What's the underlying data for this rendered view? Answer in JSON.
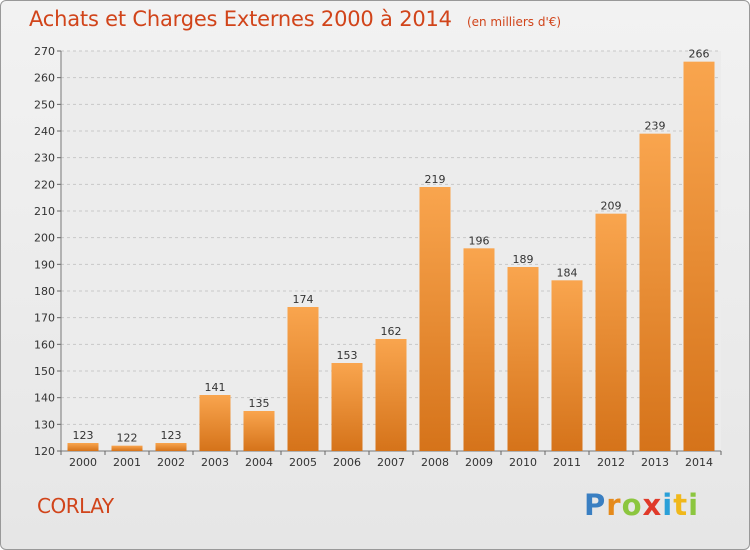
{
  "title": "Achats et Charges Externes 2000 à 2014",
  "unit": "(en milliers d'€)",
  "commune": "CORLAY",
  "logo": "Proxiti",
  "colors": {
    "title": "#d1441a",
    "bar_light": "#f9a54e",
    "bar_dark": "#d5731a"
  },
  "chart_data": {
    "type": "bar",
    "categories": [
      "2000",
      "2001",
      "2002",
      "2003",
      "2004",
      "2005",
      "2006",
      "2007",
      "2008",
      "2009",
      "2010",
      "2011",
      "2012",
      "2013",
      "2014"
    ],
    "values": [
      123,
      122,
      123,
      141,
      135,
      174,
      153,
      162,
      219,
      196,
      189,
      184,
      209,
      239,
      266
    ],
    "ylim": [
      120,
      270
    ],
    "yticks": [
      120,
      130,
      140,
      150,
      160,
      170,
      180,
      190,
      200,
      210,
      220,
      230,
      240,
      250,
      260,
      270
    ],
    "grid": true,
    "data_labels": true
  }
}
